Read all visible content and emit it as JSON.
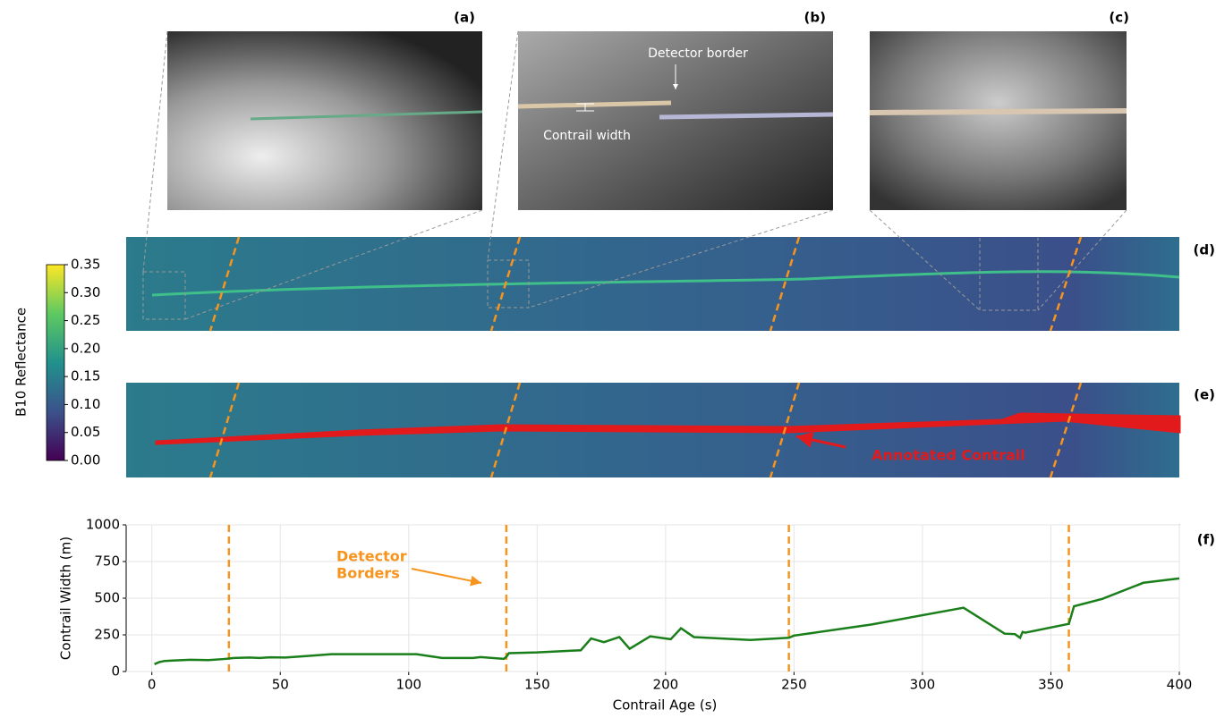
{
  "panel_labels": [
    "(a)",
    "(b)",
    "(c)",
    "(d)",
    "(e)",
    "(f)"
  ],
  "annotations": {
    "detector_border": "Detector border",
    "contrail_width": "Contrail width",
    "annotated_contrail": "Annotated Contrail"
  },
  "colorbar": {
    "label": "B10 Reflectance",
    "lim": [
      0,
      0.35
    ],
    "ticks": [
      {
        "value": 0,
        "label": "0.00"
      },
      {
        "value": 0.05,
        "label": "0.05"
      },
      {
        "value": 0.1,
        "label": "0.10"
      },
      {
        "value": 0.15,
        "label": "0.15"
      },
      {
        "value": 0.2,
        "label": "0.20"
      },
      {
        "value": 0.25,
        "label": "0.25"
      },
      {
        "value": 0.3,
        "label": "0.30"
      },
      {
        "value": 0.35,
        "label": "0.35"
      }
    ]
  },
  "chart_data": {
    "type": "line",
    "xlabel": "Contrail Age (s)",
    "ylabel": "Contrail Width (m)",
    "xlim": [
      -10,
      400
    ],
    "ylim": [
      0,
      1000
    ],
    "xticks": [
      0,
      50,
      100,
      150,
      200,
      250,
      300,
      350,
      400
    ],
    "yticks": [
      0,
      250,
      500,
      750,
      1000
    ],
    "grid": true,
    "x": [
      1,
      3,
      5,
      8,
      12,
      15,
      22,
      28,
      32,
      38,
      42,
      46,
      52,
      60,
      70,
      103,
      113,
      125,
      128,
      137,
      138,
      139,
      150,
      167,
      171,
      176,
      182,
      186,
      194,
      202,
      206,
      211,
      233,
      248,
      250,
      280,
      316,
      332,
      336,
      338,
      339,
      340,
      357,
      359,
      370,
      386,
      400
    ],
    "series": [
      {
        "name": "Contrail width",
        "color": "#1a7f1a",
        "values": [
          50,
          65,
          72,
          75,
          78,
          80,
          78,
          85,
          92,
          95,
          92,
          97,
          95,
          105,
          118,
          118,
          92,
          92,
          98,
          86,
          100,
          125,
          130,
          145,
          225,
          200,
          235,
          155,
          240,
          220,
          295,
          235,
          215,
          230,
          245,
          320,
          435,
          258,
          255,
          230,
          270,
          265,
          325,
          445,
          495,
          605,
          635
        ]
      }
    ],
    "vlines": {
      "values": [
        30,
        138,
        248,
        357
      ],
      "color": "#f7941d"
    },
    "annotation": [
      "Detector",
      "Borders"
    ]
  }
}
